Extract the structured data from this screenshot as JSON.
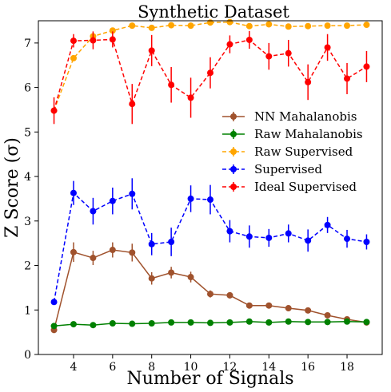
{
  "chart_data": {
    "type": "line",
    "title": "Synthetic Dataset",
    "xlabel": "Number of Signals",
    "ylabel": "Z Score (σ)",
    "x": [
      3,
      4,
      5,
      6,
      7,
      8,
      9,
      10,
      11,
      12,
      13,
      14,
      15,
      16,
      17,
      18,
      19
    ],
    "xlim": [
      2.2,
      19.8
    ],
    "ylim": [
      0,
      7.5
    ],
    "xticks": [
      4,
      6,
      8,
      10,
      12,
      14,
      16,
      18
    ],
    "yticks": [
      0,
      1,
      2,
      3,
      4,
      5,
      6,
      7
    ],
    "grid": false,
    "legend_position": "center-right",
    "series": [
      {
        "name": "NN Mahalanobis",
        "color": "#a0522d",
        "linestyle": "solid",
        "values": [
          0.55,
          2.3,
          2.17,
          2.35,
          2.29,
          1.71,
          1.84,
          1.74,
          1.36,
          1.33,
          1.1,
          1.1,
          1.04,
          0.99,
          0.88,
          0.79,
          0.72
        ],
        "errors": [
          0.0,
          0.22,
          0.16,
          0.17,
          0.2,
          0.14,
          0.13,
          0.12,
          0.08,
          0.07,
          0.05,
          0.05,
          0.05,
          0.05,
          0.05,
          0.04,
          0.04
        ]
      },
      {
        "name": "Raw Mahalanobis",
        "color": "#008000",
        "linestyle": "solid",
        "values": [
          0.64,
          0.68,
          0.66,
          0.7,
          0.69,
          0.7,
          0.72,
          0.72,
          0.71,
          0.72,
          0.74,
          0.72,
          0.74,
          0.73,
          0.73,
          0.74,
          0.73
        ],
        "errors": [
          0.03,
          0.03,
          0.03,
          0.03,
          0.03,
          0.03,
          0.03,
          0.03,
          0.03,
          0.03,
          0.03,
          0.03,
          0.03,
          0.03,
          0.03,
          0.03,
          0.03
        ]
      },
      {
        "name": "Raw Supervised",
        "color": "#ffa500",
        "linestyle": "dashed",
        "values": [
          5.48,
          6.66,
          7.15,
          7.28,
          7.39,
          7.34,
          7.4,
          7.39,
          7.46,
          7.47,
          7.38,
          7.42,
          7.37,
          7.38,
          7.39,
          7.39,
          7.41
        ],
        "errors": [
          0.05,
          0.05,
          0.04,
          0.04,
          0.03,
          0.03,
          0.03,
          0.03,
          0.03,
          0.03,
          0.03,
          0.03,
          0.03,
          0.03,
          0.03,
          0.03,
          0.03
        ]
      },
      {
        "name": "Supervised",
        "color": "#0000ff",
        "linestyle": "dashed",
        "values": [
          1.18,
          3.63,
          3.22,
          3.45,
          3.61,
          2.48,
          2.53,
          3.5,
          3.48,
          2.77,
          2.65,
          2.62,
          2.72,
          2.56,
          2.91,
          2.6,
          2.53
        ],
        "errors": [
          0.0,
          0.27,
          0.3,
          0.3,
          0.35,
          0.25,
          0.32,
          0.3,
          0.33,
          0.25,
          0.25,
          0.2,
          0.2,
          0.25,
          0.18,
          0.2,
          0.17
        ]
      },
      {
        "name": "Ideal Supervised",
        "color": "#ff0000",
        "linestyle": "dashed",
        "values": [
          5.48,
          7.05,
          7.06,
          7.08,
          5.63,
          6.83,
          6.06,
          5.77,
          6.33,
          6.97,
          7.07,
          6.7,
          6.77,
          6.12,
          6.9,
          6.2,
          6.47
        ],
        "errors": [
          0.3,
          0.15,
          0.2,
          0.18,
          0.45,
          0.35,
          0.4,
          0.45,
          0.35,
          0.2,
          0.2,
          0.3,
          0.3,
          0.4,
          0.3,
          0.35,
          0.35
        ]
      }
    ]
  }
}
